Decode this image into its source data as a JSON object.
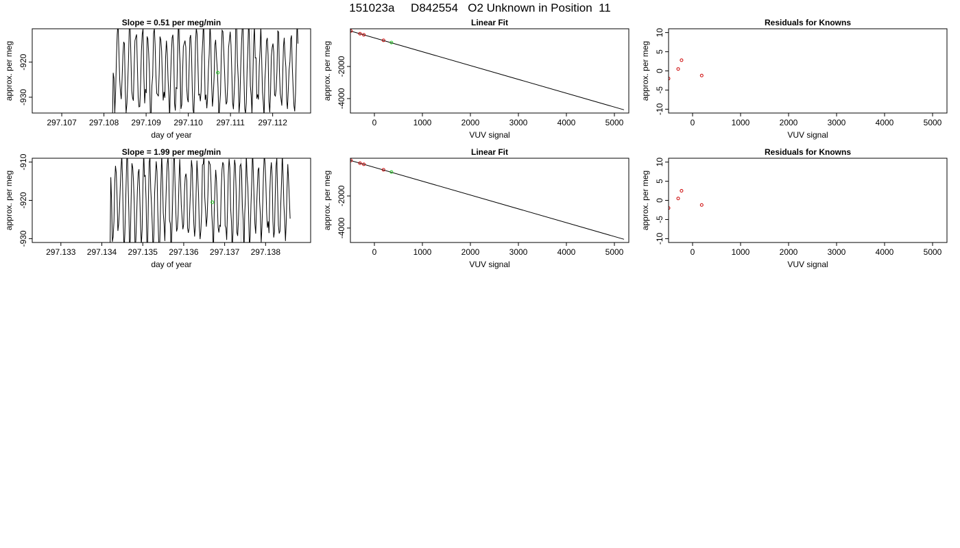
{
  "figure_title": "151023a     D842554   O2 Unknown in Position  11",
  "colors": {
    "line": "#000000",
    "known_point": "#cc0000",
    "unknown_point": "#22cc22",
    "guide_line": "#c8c8c8"
  },
  "chart_data": [
    {
      "type": "line",
      "title": "Slope =  0.51  per meg/min",
      "xlabel": "day of year",
      "ylabel": "approx. per meg",
      "xlim": [
        297.1063,
        297.1129
      ],
      "ylim": [
        -934.5,
        -910.5
      ],
      "xticks": [
        297.107,
        297.108,
        297.109,
        297.11,
        297.111,
        297.112
      ],
      "xtick_labels": [
        "297.107",
        "297.108",
        "297.109",
        "297.110",
        "297.111",
        "297.112"
      ],
      "yticks": [
        -930,
        -920
      ],
      "ytick_labels": [
        "-930",
        "-920"
      ],
      "series_start": 297.1082,
      "series_end": 297.1126,
      "series_seed": 7,
      "guide_lines_x": [
        297.1098,
        297.1115
      ],
      "unknown_point": {
        "x": 297.1107,
        "y": -923
      },
      "grid": false
    },
    {
      "type": "scatter",
      "title": "Linear Fit",
      "xlabel": "VUV signal",
      "ylabel": "approx. per meg",
      "xlim": [
        -500,
        5300
      ],
      "ylim": [
        -4900,
        350
      ],
      "xticks": [
        0,
        1000,
        2000,
        3000,
        4000,
        5000
      ],
      "xtick_labels": [
        "0",
        "1000",
        "2000",
        "3000",
        "4000",
        "5000"
      ],
      "yticks": [
        -4000,
        -2000
      ],
      "ytick_labels": [
        "-4000",
        "-2000"
      ],
      "fit_line": {
        "x": [
          -500,
          5200
        ],
        "y": [
          210,
          -4700
        ]
      },
      "known_points": {
        "x": [
          -490,
          -300,
          -220,
          190
        ],
        "y": [
          210,
          40,
          -30,
          -370
        ]
      },
      "unknown_point": {
        "x": 355,
        "y": -508
      },
      "grid": false
    },
    {
      "type": "scatter",
      "title": "Residuals for Knowns",
      "xlabel": "VUV signal",
      "ylabel": "approx. per meg",
      "xlim": [
        -500,
        5300
      ],
      "ylim": [
        -11,
        11
      ],
      "xticks": [
        0,
        1000,
        2000,
        3000,
        4000,
        5000
      ],
      "xtick_labels": [
        "0",
        "1000",
        "2000",
        "3000",
        "4000",
        "5000"
      ],
      "yticks": [
        -10,
        -5,
        0,
        5,
        10
      ],
      "ytick_labels": [
        "-10",
        "-5",
        "0",
        "5",
        "10"
      ],
      "known_points": {
        "x": [
          -500,
          -300,
          -230,
          190
        ],
        "y": [
          -2,
          0.5,
          2.8,
          -1.2
        ]
      },
      "grid": false
    },
    {
      "type": "line",
      "title": "Slope =  1.99  per meg/min",
      "xlabel": "day of year",
      "ylabel": "approx. per meg",
      "xlim": [
        297.1323,
        297.1391
      ],
      "ylim": [
        -931,
        -909
      ],
      "xticks": [
        297.133,
        297.134,
        297.135,
        297.136,
        297.137,
        297.138
      ],
      "xtick_labels": [
        "297.133",
        "297.134",
        "297.135",
        "297.136",
        "297.137",
        "297.138"
      ],
      "yticks": [
        -930,
        -920,
        -910
      ],
      "ytick_labels": [
        "-930",
        "-920",
        "-910"
      ],
      "series_start": 297.1342,
      "series_end": 297.1386,
      "series_seed": 19,
      "guide_lines_x": [
        297.1357,
        297.1374
      ],
      "unknown_point": {
        "x": 297.1367,
        "y": -920.5
      },
      "grid": false
    },
    {
      "type": "scatter",
      "title": "Linear Fit",
      "xlabel": "VUV signal",
      "ylabel": "approx. per meg",
      "xlim": [
        -500,
        5300
      ],
      "ylim": [
        -4900,
        350
      ],
      "xticks": [
        0,
        1000,
        2000,
        3000,
        4000,
        5000
      ],
      "xtick_labels": [
        "0",
        "1000",
        "2000",
        "3000",
        "4000",
        "5000"
      ],
      "yticks": [
        -4000,
        -2000
      ],
      "ytick_labels": [
        "-4000",
        "-2000"
      ],
      "fit_line": {
        "x": [
          -500,
          5200
        ],
        "y": [
          210,
          -4700
        ]
      },
      "known_points": {
        "x": [
          -490,
          -300,
          -220,
          190
        ],
        "y": [
          210,
          40,
          -30,
          -370
        ]
      },
      "unknown_point": {
        "x": 355,
        "y": -508
      },
      "grid": false
    },
    {
      "type": "scatter",
      "title": "Residuals for Knowns",
      "xlabel": "VUV signal",
      "ylabel": "approx. per meg",
      "xlim": [
        -500,
        5300
      ],
      "ylim": [
        -11,
        11
      ],
      "xticks": [
        0,
        1000,
        2000,
        3000,
        4000,
        5000
      ],
      "xtick_labels": [
        "0",
        "1000",
        "2000",
        "3000",
        "4000",
        "5000"
      ],
      "yticks": [
        -10,
        -5,
        0,
        5,
        10
      ],
      "ytick_labels": [
        "-10",
        "-5",
        "0",
        "5",
        "10"
      ],
      "known_points": {
        "x": [
          -500,
          -300,
          -230,
          190
        ],
        "y": [
          -2,
          0.5,
          2.5,
          -1.2
        ]
      },
      "grid": false
    }
  ]
}
